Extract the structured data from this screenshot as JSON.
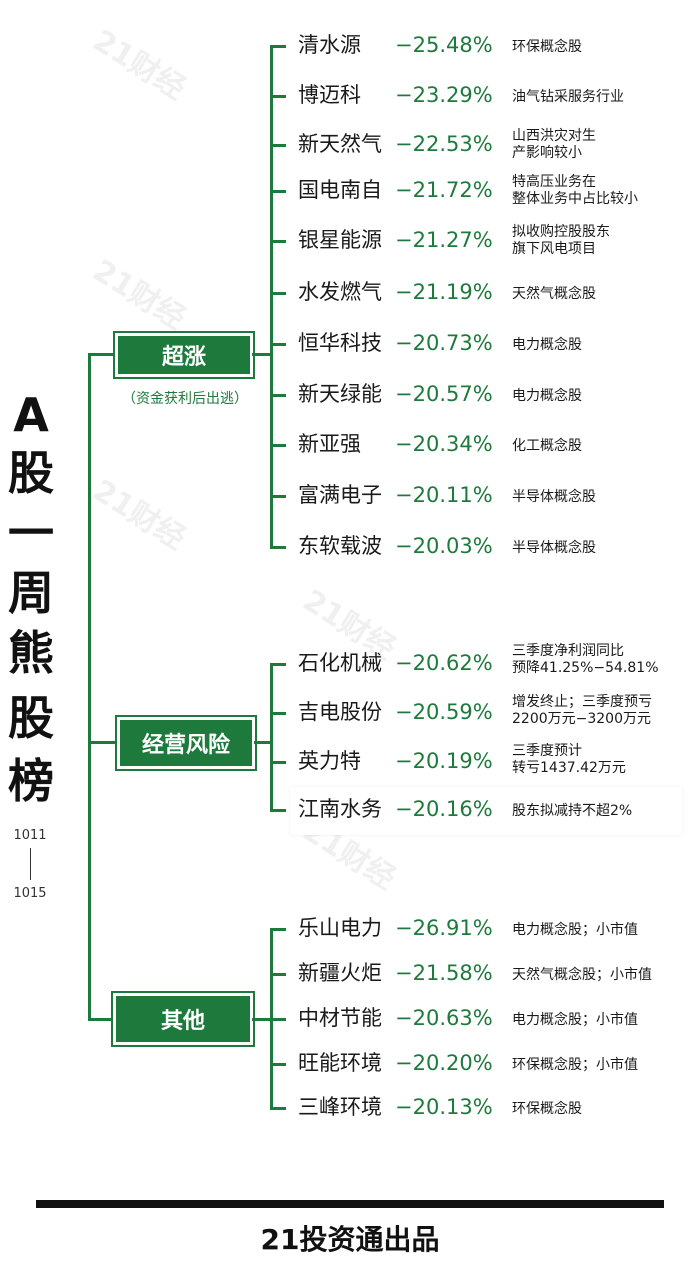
{
  "title_chars": [
    "A",
    "股",
    "一",
    "周",
    "熊",
    "股",
    "榜"
  ],
  "date_start": "1011",
  "date_end": "1015",
  "watermark": "21财经",
  "categories": [
    {
      "label": "超涨",
      "sub": "（资金获利后出逃）",
      "items": [
        {
          "name": "清水源",
          "pct": "−25.48%",
          "note": "环保概念股"
        },
        {
          "name": "博迈科",
          "pct": "−23.29%",
          "note": "油气钻采服务行业"
        },
        {
          "name": "新天然气",
          "pct": "−22.53%",
          "note": "山西洪灾对生\n产影响较小"
        },
        {
          "name": "国电南自",
          "pct": "−21.72%",
          "note": "特高压业务在\n整体业务中占比较小"
        },
        {
          "name": "银星能源",
          "pct": "−21.27%",
          "note": "拟收购控股股东\n旗下风电项目"
        },
        {
          "name": "水发燃气",
          "pct": "−21.19%",
          "note": "天然气概念股"
        },
        {
          "name": "恒华科技",
          "pct": "−20.73%",
          "note": "电力概念股"
        },
        {
          "name": "新天绿能",
          "pct": "−20.57%",
          "note": "电力概念股"
        },
        {
          "name": "新亚强",
          "pct": "−20.34%",
          "note": "化工概念股"
        },
        {
          "name": "富满电子",
          "pct": "−20.11%",
          "note": "半导体概念股"
        },
        {
          "name": "东软载波",
          "pct": "−20.03%",
          "note": "半导体概念股"
        }
      ]
    },
    {
      "label": "经营风险",
      "sub": "",
      "items": [
        {
          "name": "石化机械",
          "pct": "−20.62%",
          "note": "三季度净利润同比\n预降41.25%−54.81%"
        },
        {
          "name": "吉电股份",
          "pct": "−20.59%",
          "note": "增发终止；三季度预亏\n2200万元−3200万元"
        },
        {
          "name": "英力特",
          "pct": "−20.19%",
          "note": "三季度预计\n转亏1437.42万元"
        },
        {
          "name": "江南水务",
          "pct": "−20.16%",
          "note": "股东拟减持不超2%"
        }
      ]
    },
    {
      "label": "其他",
      "sub": "",
      "items": [
        {
          "name": "乐山电力",
          "pct": "−26.91%",
          "note": "电力概念股；小市值"
        },
        {
          "name": "新疆火炬",
          "pct": "−21.58%",
          "note": "天然气概念股；小市值"
        },
        {
          "name": "中材节能",
          "pct": "−20.63%",
          "note": "电力概念股；小市值"
        },
        {
          "name": "旺能环境",
          "pct": "−20.20%",
          "note": "环保概念股；小市值"
        },
        {
          "name": "三峰环境",
          "pct": "−20.13%",
          "note": "环保概念股"
        }
      ]
    }
  ],
  "footer": "21投资通出品"
}
